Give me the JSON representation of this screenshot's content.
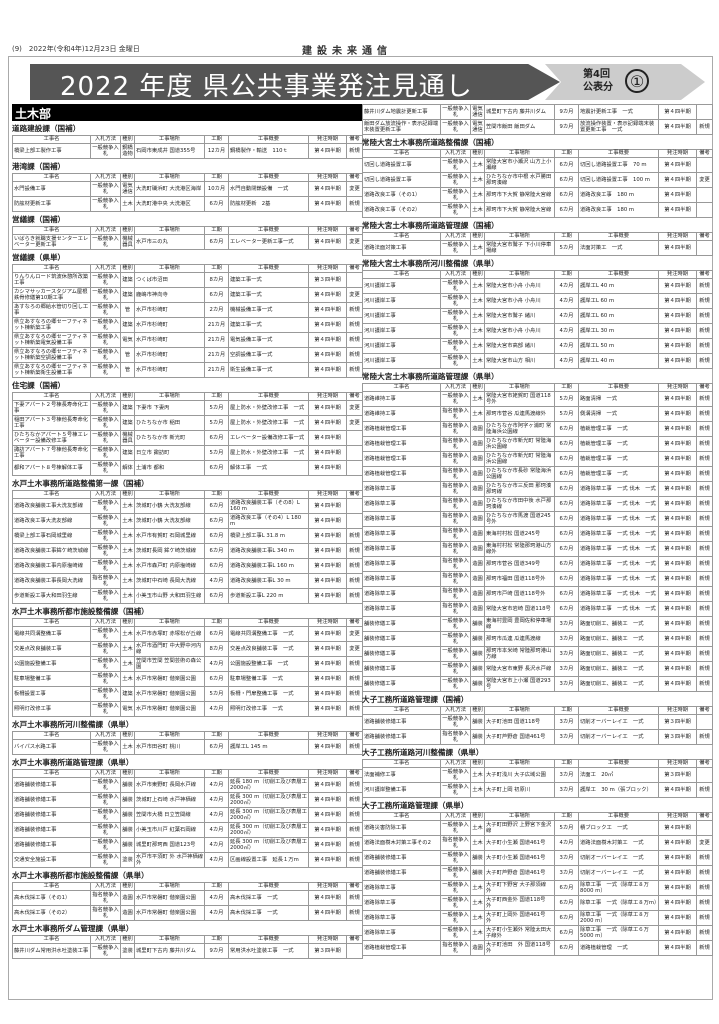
{
  "header": {
    "page": "(9)",
    "date": "2022年(令和4年)12月23日 金曜日",
    "masthead": "建設未来通信",
    "title": "2022 年度 県公共事業発注見通し",
    "badge": "第4回 公表分",
    "badge_num": "①"
  },
  "columns": [
    "工事名",
    "入札方法",
    "種別",
    "工事場所",
    "工期",
    "工事概要",
    "発注時期",
    "備考"
  ],
  "left": {
    "dept": "土木部",
    "sections": [
      {
        "title": "道路建設課（国補）",
        "rows": [
          [
            "橋梁上部工製作工事",
            "一般競争入札",
            "鋼橋造物",
            "石岡市東成井 国道355号",
            "12カ月",
            "鋼橋製作・輸送　110ｔ",
            "第４四半期",
            "新規"
          ]
        ]
      },
      {
        "title": "港湾課（国補）",
        "rows": [
          [
            "水門設備工事",
            "一般競争入札",
            "電気通信",
            "大洗町磯浜町 大洗港区海岸",
            "10カ月",
            "水門自動閉鎖設備　一式",
            "第４四半期",
            "変更"
          ],
          [
            "防舷材更新工事",
            "一般競争入札",
            "土木",
            "大洗町港中央 大洗港区",
            "6カ月",
            "防舷材更新　2基",
            "第４四半期",
            "新規"
          ]
        ]
      },
      {
        "title": "営繕課（国補）",
        "rows": [
          [
            "いばらき就職支援センターエレベーター更新工事",
            "一般競争入札",
            "機械器具",
            "水戸市三の丸",
            "6カ月",
            "エレベーター更新工事一式",
            "第４四半期",
            "変更"
          ]
        ]
      },
      {
        "title": "営繕課（県単）",
        "rows": [
          [
            "りんりんロード筑波休憩所改築工事",
            "一般競争入札",
            "建築",
            "つくば市沼田",
            "8カ月",
            "建築工事一式",
            "第３四半期",
            ""
          ],
          [
            "カシマサッカースタジアム屋根鉄骨修繕第10期工事",
            "一般競争入札",
            "建築",
            "鹿嶋市神向寺",
            "6カ月",
            "建築工事一式",
            "第４四半期",
            "変更"
          ],
          [
            "あすなろの郷給水管切り回し工事",
            "一般競争入札",
            "管",
            "水戸市杉崎町",
            "2カ月",
            "機械設備工事一式",
            "第４四半期",
            "新規"
          ],
          [
            "県立あすなろの郷セーフティネット棟新築工事",
            "一般競争入札",
            "建築",
            "水戸市杉崎町",
            "21カ月",
            "建築工事一式",
            "第４四半期",
            "新規"
          ],
          [
            "県立あすなろの郷セーフティネット棟新築電気設備工事",
            "一般競争入札",
            "電気",
            "水戸市杉崎町",
            "21カ月",
            "電気設備工事一式",
            "第４四半期",
            "新規"
          ],
          [
            "県立あすなろの郷セーフティネット棟新築空調設備工事",
            "一般競争入札",
            "管",
            "水戸市杉崎町",
            "21カ月",
            "空調設備工事一式",
            "第４四半期",
            "新規"
          ],
          [
            "県立あすなろの郷セーフティネット棟新築衛生設備工事",
            "一般競争入札",
            "管",
            "水戸市杉崎町",
            "21カ月",
            "衛生設備工事一式",
            "第４四半期",
            "新規"
          ]
        ]
      },
      {
        "title": "住宅課（国補）",
        "rows": [
          [
            "下妻アパート２号棟長寿命化工事",
            "一般競争入札",
            "建築",
            "下妻市 下妻丙",
            "5カ月",
            "屋上防水・外壁改修工事　一式",
            "第４四半期",
            "変更"
          ],
          [
            "稲田アパート３号棟他長寿命化工事",
            "一般競争入札",
            "建築",
            "ひたちなか市 稲田",
            "5カ月",
            "屋上防水・外壁改修工事　一式",
            "第４四半期",
            "変更"
          ],
          [
            "ひたちなかアパート５号棟エレベーター設備改修工事",
            "一般競争入札",
            "機械器具",
            "ひたちなか市 新光町",
            "6カ月",
            "エレベーター設備改修工事一式",
            "第４四半期",
            ""
          ],
          [
            "諏訪アパート７号棟他長寿命化工事",
            "一般競争入札",
            "建築",
            "日立市 諏訪町",
            "5カ月",
            "屋上防水・外壁改修工事　一式",
            "第４四半期",
            ""
          ],
          [
            "都和アパート８号棟解体工事",
            "一般競争入札",
            "解体",
            "土浦市 都和",
            "6カ月",
            "解体工事　一式",
            "第４四半期",
            ""
          ]
        ]
      },
      {
        "title": "水戸土木事務所道路整備第一課（国補）",
        "rows": [
          [
            "道路改良舗装工事大洗友部線",
            "一般競争入札",
            "土木",
            "茨城町小鶴 大洗友部線",
            "6カ月",
            "道路改良舗装工事（その8）L 160 m",
            "第４四半期",
            ""
          ],
          [
            "道路改良工事大洗友部線",
            "一般競争入札",
            "土木",
            "茨城町小鶴 大洗友部線",
            "6カ月",
            "道路改良工事（その4）L 180 m",
            "第４四半期",
            ""
          ],
          [
            "橋梁上部工事石岡城里線",
            "一般競争入札",
            "土木",
            "水戸市有賀町 石岡城里線",
            "6カ月",
            "橋梁上部工事L 31.8 m",
            "第４四半期",
            "新規"
          ],
          [
            "道路改良舗装工事鉾ケ崎茨城線",
            "一般競争入札",
            "土木",
            "茨城町長岡 鉾ケ崎茨城線",
            "6カ月",
            "道路改良舗装工事L 340 m",
            "第４四半期",
            "新規"
          ],
          [
            "道路改良舗装工事内原塩崎線",
            "一般競争入札",
            "土木",
            "水戸市森戸町 内原塩崎線",
            "6カ月",
            "道路改良舗装工事L 160 m",
            "第４四半期",
            "新規"
          ],
          [
            "道路改良舗装工事長岡大洗線",
            "指名競争入札",
            "土木",
            "茨城町中石崎 長岡大洗線",
            "4カ月",
            "道路改良舗装工事L 30 m",
            "第４四半期",
            "新規"
          ],
          [
            "歩道新設工事大和田羽生線",
            "一般競争入札",
            "土木",
            "小美玉市山野 大和田羽生線",
            "6カ月",
            "歩道新設工事L 220 m",
            "第４四半期",
            "新規"
          ]
        ]
      },
      {
        "title": "水戸土木事務所都市施設整備課（国補）",
        "rows": [
          [
            "電線共同溝整備工事",
            "一般競争入札",
            "土木",
            "水戸市赤塚町 赤塚松が丘線",
            "6カ月",
            "電線共同溝整備工事　一式",
            "第４四半期",
            "変更"
          ],
          [
            "交差点改良舗装工事",
            "一般競争入札",
            "土木",
            "水戸市酒門町 中大野中河内線",
            "8カ月",
            "交差点改良舗装工事　一式",
            "第４四半期",
            "変更"
          ],
          [
            "公園施設整備工事",
            "一般競争入札",
            "土木",
            "笠間市笠間 笠間芸術の森公園",
            "4カ月",
            "公園施設整備工事　一式",
            "第４四半期",
            "新規"
          ],
          [
            "駐車場整備工事",
            "一般競争入札",
            "土木",
            "水戸市常磐町 偕楽園公園",
            "6カ月",
            "駐車場整備工事　一式",
            "第４四半期",
            "新規"
          ],
          [
            "板柵設置工事",
            "一般競争入札",
            "建築",
            "水戸市常磐町 偕楽園公園",
            "5カ月",
            "板柵・門扉整備工事　一式",
            "第４四半期",
            "新規"
          ],
          [
            "照明灯改修工事",
            "一般競争入札",
            "電気",
            "水戸市常磐町 偕楽園公園",
            "4カ月",
            "照明灯改修工事　一式",
            "第４四半期",
            "新規"
          ]
        ]
      },
      {
        "title": "水戸土木事務所河川整備課（県単）",
        "rows": [
          [
            "バイパス水路工事",
            "一般競争入札",
            "土木",
            "水戸市田谷町 桃川",
            "6カ月",
            "護岸工L 145 m",
            "第４四半期",
            "新規"
          ]
        ]
      },
      {
        "title": "水戸土木事務所道路管理課（県単）",
        "rows": [
          [
            "道路舗装修繕工事",
            "一般競争入札",
            "舗装",
            "水戸市東野町 長岡水戸線",
            "4カ月",
            "延長 180 m（切削工及び表層工 2000㎡）",
            "第４四半期",
            "新規"
          ],
          [
            "道路舗装修繕工事",
            "一般競争入札",
            "舗装",
            "茨城町上石崎 水戸神栖線",
            "4カ月",
            "延長 300 m（切削工及び表層工 2000㎡）",
            "第４四半期",
            "新規"
          ],
          [
            "道路舗装修繕工事",
            "一般競争入札",
            "舗装",
            "笠間市大橋 日立笠間線",
            "4カ月",
            "延長 300 m（切削工及び表層工 2000㎡）",
            "第４四半期",
            "新規"
          ],
          [
            "道路舗装修繕工事",
            "一般競争入札",
            "舗装",
            "小美玉市川戸 紅葉石岡線",
            "4カ月",
            "延長 300 m（切削工及び表層工 2000㎡）",
            "第４四半期",
            "新規"
          ],
          [
            "道路舗装修繕工事",
            "一般競争入札",
            "舗装",
            "城里町那珂西 国道123号",
            "4カ月",
            "延長 300 m（切削工及び表層工 2000㎡）",
            "第４四半期",
            "新規"
          ],
          [
            "交通安全施設工事",
            "一般競争入札",
            "塗装",
            "水戸市平須町 外 水戸神栖線 外",
            "4カ月",
            "区画線設置工事　延長１万m",
            "第４四半期",
            "新規"
          ]
        ]
      },
      {
        "title": "水戸土木事務所都市施設整備課（県単）",
        "rows": [
          [
            "高木伐採工事（その1）",
            "指名競争入札",
            "造園",
            "水戸市常磐町 偕楽園公園",
            "4カ月",
            "高木伐採工事　一式",
            "第４四半期",
            "新規"
          ],
          [
            "高木伐採工事（その2）",
            "指名競争入札",
            "造園",
            "水戸市常磐町 偕楽園公園",
            "4カ月",
            "高木伐採工事　一式",
            "第４四半期",
            "新規"
          ]
        ]
      },
      {
        "title": "水戸土木事務所ダム管理課（県単）",
        "rows": [
          [
            "藤井川ダム常用洪水吐塗装工事",
            "一般競争入札",
            "塗装",
            "城里町下古内 藤井川ダム",
            "9カ月",
            "常用洪水吐塗装工事　一式",
            "第３四半期",
            ""
          ]
        ]
      }
    ]
  },
  "right": {
    "continuation_rows": [
      [
        "藤井川ダム地震計更新工事",
        "一般競争入札",
        "電気通信",
        "城里町下古内 藤井川ダム",
        "9カ月",
        "地震計更新工事　一式",
        "第４四半期",
        ""
      ],
      [
        "飯田ダム放流操作・表示記録端末装置更新工事",
        "一般競争入札",
        "電気通信",
        "笠間市飯田 飯田ダム",
        "9カ月",
        "放流操作装置・表示記録端末装置更新工事　一式",
        "第４四半期",
        "新規"
      ]
    ],
    "sections": [
      {
        "title": "常陸大宮土木事務所道路整備課（国補）",
        "rows": [
          [
            "切回し道路設置工事",
            "一般競争入札",
            "土木",
            "常陸大宮市小瀬沢 山方上小瀬線",
            "6カ月",
            "切回し道路設置工事　70 m",
            "第４四半期",
            ""
          ],
          [
            "切回し道路設置工事",
            "一般競争入札",
            "土木",
            "ひたちなか市中根 水戸勝田那珂湊線",
            "6カ月",
            "切回し道路設置工事　100 m",
            "第４四半期",
            "変更"
          ],
          [
            "道路改良工事（その1）",
            "一般競争入札",
            "土木",
            "那珂市下大賀 静常陸大宮線",
            "6カ月",
            "道路改良工事　180 m",
            "第４四半期",
            ""
          ],
          [
            "道路改良工事（その2）",
            "一般競争入札",
            "土木",
            "那珂市下大賀 静常陸大宮線",
            "6カ月",
            "道路改良工事　180 m",
            "第４四半期",
            ""
          ]
        ]
      },
      {
        "title": "常陸大宮土木事務所道路管理課（国補）",
        "rows": [
          [
            "道路法面対策工事",
            "一般競争入札",
            "土木",
            "常陸大宮市鷲子 下小川停車場線",
            "5カ月",
            "法面対策工　一式",
            "第４四半期",
            ""
          ]
        ]
      },
      {
        "title": "常陸大宮土木事務所河川整備課（県単）",
        "rows": [
          [
            "河川護岸工事",
            "一般競争入札",
            "土木",
            "常陸大宮市小舟 小舟川",
            "4カ月",
            "護岸工L 40 m",
            "第４四半期",
            "新規"
          ],
          [
            "河川護岸工事",
            "一般競争入札",
            "土木",
            "常陸大宮市小舟 小舟川",
            "4カ月",
            "護岸工L 60 m",
            "第４四半期",
            "新規"
          ],
          [
            "河川護岸工事",
            "一般競争入札",
            "土木",
            "常陸大宮市鷲子 緒川",
            "4カ月",
            "護岸工L 60 m",
            "第４四半期",
            "新規"
          ],
          [
            "河川護岸工事",
            "一般競争入札",
            "土木",
            "常陸大宮市小舟 小舟川",
            "4カ月",
            "護岸工L 30 m",
            "第４四半期",
            "新規"
          ],
          [
            "河川護岸工事",
            "一般競争入札",
            "土木",
            "常陸大宮市高部 緒川",
            "4カ月",
            "護岸工L 50 m",
            "第４四半期",
            "新規"
          ],
          [
            "河川護岸工事",
            "一般競争入札",
            "土木",
            "常陸大宮市山方 相川",
            "4カ月",
            "護岸工L 40 m",
            "第４四半期",
            "新規"
          ]
        ]
      },
      {
        "title": "常陸大宮土木事務所道路管理課（県単）",
        "rows": [
          [
            "道路維持工事",
            "一般競争入札",
            "土木",
            "常陸大宮市姥賀町 国道118号外",
            "5カ月",
            "路面清掃　一式",
            "第４四半期",
            "新規"
          ],
          [
            "道路維持工事",
            "指名競争入札",
            "土木",
            "那珂市菅谷 瓜連馬渡線外",
            "5カ月",
            "側溝清掃　一式",
            "第４四半期",
            "新規"
          ],
          [
            "道路植栽管理工事",
            "指名競争入札",
            "造園",
            "ひたちなか市阿字ヶ浦町 常陸海浜公園線",
            "6カ月",
            "植栽管理工事　一式",
            "第４四半期",
            "新規"
          ],
          [
            "道路植栽管理工事",
            "指名競争入札",
            "造園",
            "ひたちなか市新光町 常陸海浜公園線",
            "6カ月",
            "植栽管理工事　一式",
            "第４四半期",
            "新規"
          ],
          [
            "道路植栽管理工事",
            "指名競争入札",
            "造園",
            "ひたちなか市新光町 常陸海浜公園線",
            "6カ月",
            "植栽管理工事　一式",
            "第４四半期",
            "新規"
          ],
          [
            "道路植栽管理工事",
            "指名競争入札",
            "造園",
            "ひたちなか市長砂 常陸海浜公園線",
            "6カ月",
            "植栽管理工事　一式",
            "第４四半期",
            "新規"
          ],
          [
            "道路除草工事",
            "指名競争入札",
            "造園",
            "ひたちなか市三反田 那珂湊那珂線",
            "6カ月",
            "道路除草工事　一式 伐木　一式",
            "第４四半期",
            "新規"
          ],
          [
            "道路除草工事",
            "指名競争入札",
            "造園",
            "ひたちなか市田中後 水戸那珂湊線",
            "6カ月",
            "道路除草工事　一式 伐木　一式",
            "第４四半期",
            "新規"
          ],
          [
            "道路除草工事",
            "指名競争入札",
            "造園",
            "ひたちなか市馬渡 国道245号外",
            "6カ月",
            "道路除草工事　一式 伐木　一式",
            "第４四半期",
            "新規"
          ],
          [
            "道路除草工事",
            "指名競争入札",
            "造園",
            "東海村村松 国道245号",
            "6カ月",
            "道路除草工事　一式 伐木　一式",
            "第４四半期",
            "新規"
          ],
          [
            "道路除草工事",
            "指名競争入札",
            "造園",
            "東海村村松 常陸那珂港山方線外",
            "6カ月",
            "道路除草工事　一式 伐木　一式",
            "第４四半期",
            "新規"
          ],
          [
            "道路除草工事",
            "指名競争入札",
            "造園",
            "那珂市菅谷 国道349号",
            "6カ月",
            "道路除草工事　一式 伐木　一式",
            "第４四半期",
            "新規"
          ],
          [
            "道路除草工事",
            "指名競争入札",
            "造園",
            "那珂市福田 国道118号外",
            "6カ月",
            "道路除草工事　一式 伐木　一式",
            "第４四半期",
            "新規"
          ],
          [
            "道路除草工事",
            "指名競争入札",
            "造園",
            "那珂市戸崎 国道118号外",
            "6カ月",
            "道路除草工事　一式 伐木　一式",
            "第４四半期",
            "新規"
          ],
          [
            "道路除草工事",
            "指名競争入札",
            "造園",
            "常陸大宮市岩崎 国道118号",
            "6カ月",
            "道路除草工事　一式 伐木　一式",
            "第４四半期",
            "新規"
          ],
          [
            "舗装修繕工事",
            "一般競争入札",
            "舗装",
            "東海村豊岡 豊岡佐和停車場線",
            "3カ月",
            "路面切削工、舗装工　一式",
            "第４四半期",
            "新規"
          ],
          [
            "舗装修繕工事",
            "一般競争入札",
            "舗装",
            "那珂市瓜連 瓜連馬渡線",
            "3カ月",
            "路面切削工、舗装工　一式",
            "第４四半期",
            "新規"
          ],
          [
            "舗装修繕工事",
            "一般競争入札",
            "舗装",
            "那珂市本米崎 常陸那珂港山方線",
            "3カ月",
            "路面切削工、舗装工　一式",
            "第４四半期",
            "新規"
          ],
          [
            "舗装修繕工事",
            "一般競争入札",
            "舗装",
            "常陸大宮市東野 長沢水戸線",
            "3カ月",
            "路面切削工、舗装工　一式",
            "第４四半期",
            "新規"
          ],
          [
            "舗装修繕工事",
            "一般競争入札",
            "舗装",
            "常陸大宮市上小瀬 国道293号",
            "3カ月",
            "路面切削工、舗装工　一式",
            "第４四半期",
            "新規"
          ]
        ]
      },
      {
        "title": "大子工務所道路管理課（国補）",
        "rows": [
          [
            "道路舗装修繕工事",
            "一般競争入札",
            "舗装",
            "大子町池田 国道118号",
            "3カ月",
            "切削オーバーレイ工　一式",
            "第３四半期",
            ""
          ],
          [
            "道路舗装修繕工事",
            "指名競争入札",
            "舗装",
            "大子町芦野倉 国道461号",
            "3カ月",
            "切削オーバーレイ工　一式",
            "第３四半期",
            "新規"
          ]
        ]
      },
      {
        "title": "大子工務所道路河川整備課（県単）",
        "rows": [
          [
            "法面補修工事",
            "一般競争入札",
            "土木",
            "大子町浅川 大子広域公園",
            "3カ月",
            "法面工　20㎡",
            "第３四半期",
            ""
          ],
          [
            "河川護岸整備工事",
            "一般競争入札",
            "土木",
            "大子町上岡 初原川",
            "3カ月",
            "護岸工　30 m（張ブロック）",
            "第４四半期",
            "新規"
          ]
        ]
      },
      {
        "title": "大子工務所道路管理課（県単）",
        "rows": [
          [
            "道路災害防除工事",
            "一般競争入札",
            "土木",
            "大子町田野沢 上野宮下金沢線",
            "5カ月",
            "積ブロック工　一式",
            "第４四半期",
            ""
          ],
          [
            "道路法面樹木対策工事その2",
            "指名競争入札",
            "土木",
            "大子町小生瀬 国道461号",
            "4カ月",
            "道路法面樹木対策工　一式",
            "第４四半期",
            "変更"
          ],
          [
            "道路舗装修繕工事",
            "一般競争入札",
            "舗装",
            "大子町小生瀬 国道461号",
            "3カ月",
            "切削オーバーレイ工　一式",
            "第４四半期",
            "新規"
          ],
          [
            "道路舗装修繕工事",
            "一般競争入札",
            "舗装",
            "大子町芦野倉 国道461号",
            "3カ月",
            "切削オーバーレイ工　一式",
            "第４四半期",
            "新規"
          ],
          [
            "道路除草工事",
            "一般競争入札",
            "土木",
            "大子町下野宮 大子那須線　外",
            "6カ月",
            "除草工事　一式（除草工８万8000 m）",
            "第４四半期",
            "新規"
          ],
          [
            "道路除草工事",
            "一般競争入札",
            "土木",
            "大子町西金外 国道118号　外",
            "6カ月",
            "除草工事　一式（除草工８万m）",
            "第４四半期",
            "新規"
          ],
          [
            "道路除草工事",
            "一般競争入札",
            "土木",
            "大子町上岡外 国道461号　外",
            "6カ月",
            "除草工事　一式（除草工８万2000 m）",
            "第４四半期",
            "新規"
          ],
          [
            "道路除草工事",
            "一般競争入札",
            "土木",
            "大子町小生瀬外 常陸太田大子線外",
            "6カ月",
            "除草工事　一式（除草工６万5000 m）",
            "第４四半期",
            "新規"
          ],
          [
            "道路植栽管理工事",
            "指名競争入札",
            "造園",
            "大子町池田　外 国道118号　外",
            "6カ月",
            "道路植栽管理　一式",
            "第４四半期",
            "新規"
          ]
        ]
      }
    ]
  }
}
